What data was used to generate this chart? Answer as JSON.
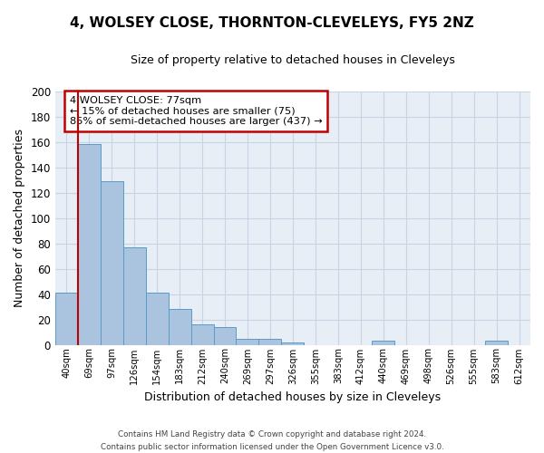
{
  "title": "4, WOLSEY CLOSE, THORNTON-CLEVELEYS, FY5 2NZ",
  "subtitle": "Size of property relative to detached houses in Cleveleys",
  "xlabel": "Distribution of detached houses by size in Cleveleys",
  "ylabel": "Number of detached properties",
  "bar_labels": [
    "40sqm",
    "69sqm",
    "97sqm",
    "126sqm",
    "154sqm",
    "183sqm",
    "212sqm",
    "240sqm",
    "269sqm",
    "297sqm",
    "326sqm",
    "355sqm",
    "383sqm",
    "412sqm",
    "440sqm",
    "469sqm",
    "498sqm",
    "526sqm",
    "555sqm",
    "583sqm",
    "612sqm"
  ],
  "bar_values": [
    41,
    158,
    129,
    77,
    41,
    28,
    16,
    14,
    5,
    5,
    2,
    0,
    0,
    0,
    3,
    0,
    0,
    0,
    0,
    3,
    0
  ],
  "bar_color": "#aac4e0",
  "bar_edge_color": "#5a9bc8",
  "vline_color": "#c00000",
  "vline_pos": 0.5,
  "ylim": [
    0,
    200
  ],
  "yticks": [
    0,
    20,
    40,
    60,
    80,
    100,
    120,
    140,
    160,
    180,
    200
  ],
  "annotation_title": "4 WOLSEY CLOSE: 77sqm",
  "annotation_line1": "← 15% of detached houses are smaller (75)",
  "annotation_line2": "85% of semi-detached houses are larger (437) →",
  "annotation_box_color": "#ffffff",
  "annotation_box_edge": "#c00000",
  "footer1": "Contains HM Land Registry data © Crown copyright and database right 2024.",
  "footer2": "Contains public sector information licensed under the Open Government Licence v3.0.",
  "grid_color": "#c8d4e4",
  "bg_color": "#e8eef6"
}
